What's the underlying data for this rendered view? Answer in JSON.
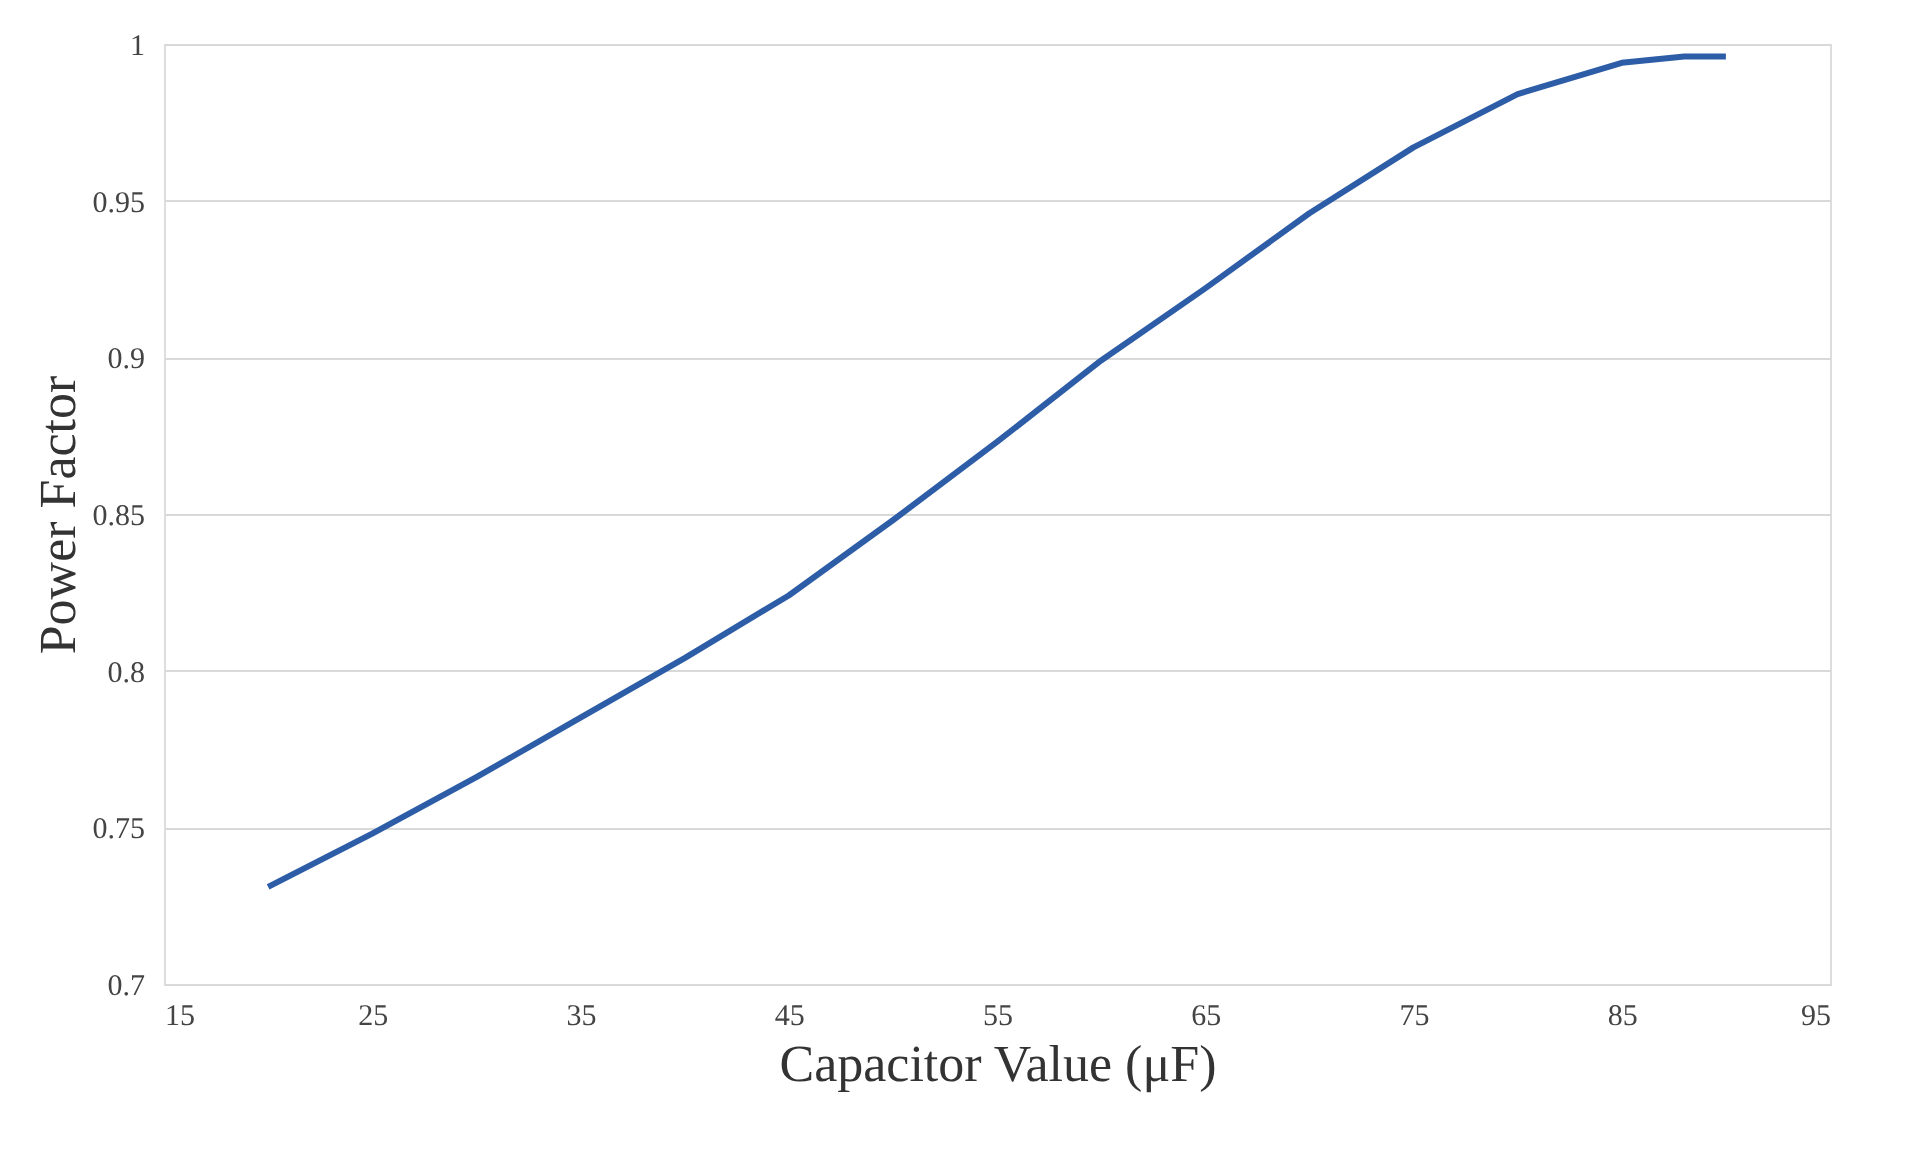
{
  "chart_data": {
    "type": "line",
    "xlabel": "Capacitor Value (μF)",
    "ylabel": "Power Factor",
    "series": [
      {
        "color": "#2e5da8",
        "x": [
          20,
          25,
          30,
          35,
          40,
          45,
          50,
          55,
          60,
          65,
          70,
          75,
          80,
          85,
          88,
          90
        ],
        "values": [
          0.731,
          0.748,
          0.766,
          0.785,
          0.804,
          0.824,
          0.848,
          0.873,
          0.899,
          0.922,
          0.946,
          0.967,
          0.984,
          0.994,
          0.996,
          0.996
        ]
      }
    ],
    "xlim": [
      15,
      95
    ],
    "xticks": [
      15,
      25,
      35,
      45,
      55,
      65,
      75,
      85,
      95
    ],
    "ylim": [
      0.7,
      1
    ],
    "yticks": [
      0.7,
      0.75,
      0.8,
      0.85,
      0.9,
      0.95,
      1
    ],
    "grid": "y",
    "marker": "none",
    "line_style": "solid"
  }
}
